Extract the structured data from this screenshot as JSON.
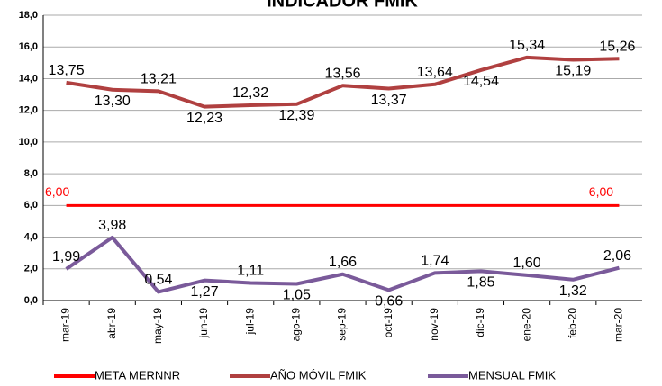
{
  "chart_data": {
    "type": "line",
    "title": "INDICADOR FMIK",
    "categories": [
      "mar-19",
      "abr-19",
      "may-19",
      "jun-19",
      "jul-19",
      "ago-19",
      "sep-19",
      "oct-19",
      "nov-19",
      "dic-19",
      "ene-20",
      "feb-20",
      "mar-20"
    ],
    "series": [
      {
        "name": "META MERNNR",
        "color": "#ff0000",
        "values": [
          6,
          6,
          6,
          6,
          6,
          6,
          6,
          6,
          6,
          6,
          6,
          6,
          6
        ],
        "value_labels": [
          "6,00",
          null,
          null,
          null,
          null,
          null,
          null,
          null,
          null,
          null,
          null,
          null,
          "6,00"
        ]
      },
      {
        "name": "AÑO MÓVIL  FMIK",
        "color": "#b04040",
        "values": [
          13.75,
          13.3,
          13.21,
          12.23,
          12.32,
          12.39,
          13.56,
          13.37,
          13.64,
          14.54,
          15.34,
          15.19,
          15.26
        ],
        "value_labels": [
          "13,75",
          "13,30",
          "13,21",
          "12,23",
          "12,32",
          "12,39",
          "13,56",
          "13,37",
          "13,64",
          "14,54",
          "15,34",
          "15,19",
          "15,26"
        ]
      },
      {
        "name": "MENSUAL FMIK",
        "color": "#7a5a9a",
        "values": [
          1.99,
          3.98,
          0.54,
          1.27,
          1.11,
          1.05,
          1.66,
          0.66,
          1.74,
          1.85,
          1.6,
          1.32,
          2.06
        ],
        "value_labels": [
          "1,99",
          "3,98",
          "0,54",
          "1,27",
          "1,11",
          "1,05",
          "1,66",
          "0,66",
          "1,74",
          "1,85",
          "1,60",
          "1,32",
          "2,06"
        ]
      }
    ],
    "ylim": [
      0,
      18
    ],
    "yticks": [
      {
        "value": 0,
        "label": "0,0"
      },
      {
        "value": 2,
        "label": "2,0"
      },
      {
        "value": 4,
        "label": "4,0"
      },
      {
        "value": 6,
        "label": "6,0"
      },
      {
        "value": 8,
        "label": "8,0"
      },
      {
        "value": 10,
        "label": "10,0"
      },
      {
        "value": 12,
        "label": "12,0"
      },
      {
        "value": 14,
        "label": "14,0"
      },
      {
        "value": 16,
        "label": "16,0"
      },
      {
        "value": 18,
        "label": "18,0"
      }
    ],
    "grid": true,
    "legend": "bottom"
  }
}
